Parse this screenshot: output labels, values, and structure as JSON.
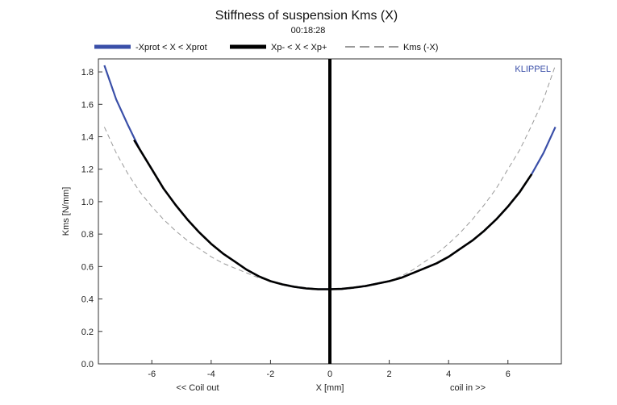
{
  "chart_data": {
    "type": "line",
    "title": "Stiffness of suspension Kms (X)",
    "subtitle": "00:18:28",
    "xlabel": "X [mm]",
    "ylabel": "Kms [N/mm]",
    "x_left_note": "<< Coil out",
    "x_right_note": "coil in >>",
    "brand": "KLIPPEL",
    "xlim": [
      -7.8,
      7.8
    ],
    "ylim": [
      0.0,
      1.88
    ],
    "x_ticks": [
      -6,
      -4,
      -2,
      0,
      2,
      4,
      6
    ],
    "x_tick_labels": [
      "-6",
      "-4",
      "-2",
      "0",
      "2",
      "4",
      "6"
    ],
    "y_ticks": [
      0.0,
      0.2,
      0.4,
      0.6,
      0.8,
      1.0,
      1.2,
      1.4,
      1.6,
      1.8
    ],
    "y_tick_labels": [
      "0.0",
      "0.2",
      "0.4",
      "0.6",
      "0.8",
      "1.0",
      "1.2",
      "1.4",
      "1.6",
      "1.8"
    ],
    "legend_placement": "top",
    "grid": false,
    "vertical_marker_x": 0,
    "series": [
      {
        "name": "-Xprot < X < Xprot",
        "color": "#3a4fa8",
        "style": "solid",
        "x": [
          -7.6,
          -7.2,
          -6.8,
          -6.4,
          -6.0,
          -5.6,
          -5.2,
          -4.8,
          -4.4,
          -4.0,
          -3.6,
          -3.2,
          -2.8,
          -2.4,
          -2.0,
          -1.6,
          -1.2,
          -0.8,
          -0.4,
          0.0,
          0.4,
          0.8,
          1.2,
          1.6,
          2.0,
          2.4,
          2.8,
          3.2,
          3.6,
          4.0,
          4.4,
          4.8,
          5.2,
          5.6,
          6.0,
          6.4,
          6.8,
          7.2,
          7.6
        ],
        "y": [
          1.84,
          1.63,
          1.47,
          1.32,
          1.2,
          1.08,
          0.98,
          0.89,
          0.81,
          0.74,
          0.68,
          0.63,
          0.58,
          0.54,
          0.51,
          0.49,
          0.475,
          0.465,
          0.46,
          0.46,
          0.462,
          0.47,
          0.48,
          0.495,
          0.51,
          0.53,
          0.56,
          0.59,
          0.62,
          0.66,
          0.71,
          0.76,
          0.82,
          0.89,
          0.97,
          1.06,
          1.17,
          1.3,
          1.46
        ]
      },
      {
        "name": "Xp- < X < Xp+",
        "color": "#000000",
        "style": "solid",
        "x": [
          -6.6,
          -6.4,
          -6.0,
          -5.6,
          -5.2,
          -4.8,
          -4.4,
          -4.0,
          -3.6,
          -3.2,
          -2.8,
          -2.4,
          -2.0,
          -1.6,
          -1.2,
          -0.8,
          -0.4,
          0.0,
          0.4,
          0.8,
          1.2,
          1.6,
          2.0,
          2.4,
          2.8,
          3.2,
          3.6,
          4.0,
          4.4,
          4.8,
          5.2,
          5.6,
          6.0,
          6.4,
          6.8
        ],
        "y": [
          1.38,
          1.32,
          1.2,
          1.08,
          0.98,
          0.89,
          0.81,
          0.74,
          0.68,
          0.63,
          0.58,
          0.54,
          0.51,
          0.49,
          0.475,
          0.465,
          0.46,
          0.46,
          0.462,
          0.47,
          0.48,
          0.495,
          0.51,
          0.53,
          0.56,
          0.59,
          0.62,
          0.66,
          0.71,
          0.76,
          0.82,
          0.89,
          0.97,
          1.06,
          1.17
        ]
      },
      {
        "name": "Kms (-X)",
        "color": "#9a9a9a",
        "style": "dashed",
        "x": [
          -7.6,
          -7.2,
          -6.8,
          -6.4,
          -6.0,
          -5.6,
          -5.2,
          -4.8,
          -4.4,
          -4.0,
          -3.6,
          -3.2,
          -2.8,
          -2.4,
          -2.0,
          -1.6,
          -1.2,
          -0.8,
          -0.4,
          0.0,
          0.4,
          0.8,
          1.2,
          1.6,
          2.0,
          2.4,
          2.8,
          3.2,
          3.6,
          4.0,
          4.4,
          4.8,
          5.2,
          5.6,
          6.0,
          6.4,
          6.8,
          7.2,
          7.6
        ],
        "y": [
          1.46,
          1.3,
          1.17,
          1.06,
          0.97,
          0.89,
          0.82,
          0.76,
          0.71,
          0.66,
          0.62,
          0.59,
          0.56,
          0.53,
          0.51,
          0.495,
          0.48,
          0.47,
          0.462,
          0.46,
          0.46,
          0.465,
          0.475,
          0.49,
          0.51,
          0.54,
          0.58,
          0.63,
          0.68,
          0.74,
          0.81,
          0.89,
          0.98,
          1.08,
          1.2,
          1.32,
          1.47,
          1.63,
          1.84
        ]
      }
    ]
  }
}
